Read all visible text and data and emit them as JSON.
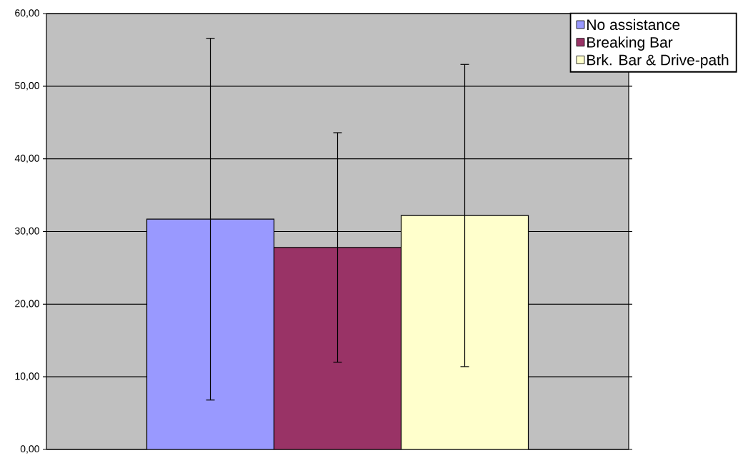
{
  "chart_data": {
    "type": "bar",
    "categories": [
      null
    ],
    "series": [
      {
        "name": "No assistance",
        "color": "#9999ff",
        "values": [
          31.7
        ],
        "errors": [
          24.9
        ]
      },
      {
        "name": "Breaking Bar",
        "color": "#993366",
        "values": [
          27.8
        ],
        "errors": [
          15.8
        ]
      },
      {
        "name": "Brk. Bar &  Drive-path",
        "color": "#ffffcc",
        "values": [
          32.2
        ],
        "errors": [
          20.8
        ]
      }
    ],
    "ylim": [
      0,
      60
    ],
    "yticks": [
      {
        "value": 0,
        "label": "0,00"
      },
      {
        "value": 10,
        "label": "10,00"
      },
      {
        "value": 20,
        "label": "20,00"
      },
      {
        "value": 30,
        "label": "30,00"
      },
      {
        "value": 40,
        "label": "40,00"
      },
      {
        "value": 50,
        "label": "50,00"
      },
      {
        "value": 60,
        "label": "60,00"
      }
    ],
    "grid": "y",
    "legend": "top right"
  }
}
